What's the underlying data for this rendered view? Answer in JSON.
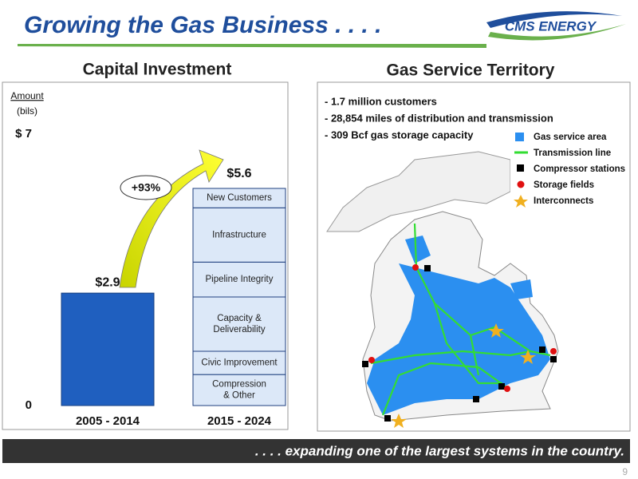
{
  "header": {
    "title": "Growing the Gas Business . . . .",
    "logo": "CMS ENERGY"
  },
  "chart_data": {
    "type": "bar",
    "title": "Capital Investment",
    "y_label": [
      "Amount",
      "(bils)"
    ],
    "ylim": [
      0,
      7
    ],
    "yticks": [
      0,
      {
        "value": 7,
        "label": "$ 7"
      }
    ],
    "categories": [
      "2005 - 2014",
      "2015 - 2024"
    ],
    "bars": [
      {
        "value": 2.9,
        "value_label": "$2.9",
        "color": "#1f5fbf"
      },
      {
        "total": 5.6,
        "total_label": "$5.6",
        "color": "#dce8f8",
        "segments": [
          {
            "name": "Compression\n& Other",
            "value": 0.8
          },
          {
            "name": "Civic Improvement",
            "value": 0.6
          },
          {
            "name": "Capacity &\nDeliverability",
            "value": 1.4
          },
          {
            "name": "Pipeline Integrity",
            "value": 0.9
          },
          {
            "name": "Infrastructure",
            "value": 1.4
          },
          {
            "name": "New Customers",
            "value": 0.5
          }
        ]
      }
    ],
    "annotation": "+93%"
  },
  "map": {
    "title": "Gas Service Territory",
    "bullets": [
      "- 1.7 million customers",
      "- 28,854 miles of distribution and transmission",
      "- 309 Bcf gas storage capacity"
    ],
    "legend": [
      "Gas service area",
      "Transmission line",
      "Compressor stations",
      "Storage fields",
      "Interconnects"
    ]
  },
  "footer": ". . . . expanding one of the largest systems in the country.",
  "page_number": "9"
}
